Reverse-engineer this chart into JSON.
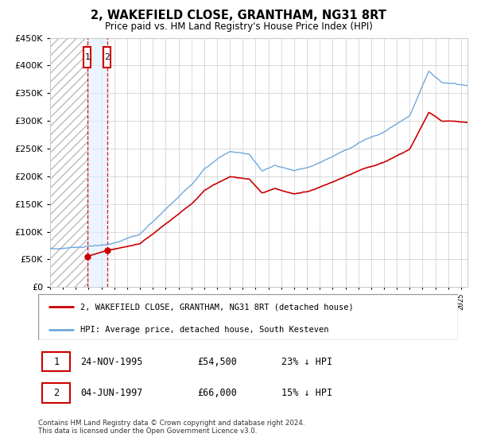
{
  "title": "2, WAKEFIELD CLOSE, GRANTHAM, NG31 8RT",
  "subtitle": "Price paid vs. HM Land Registry's House Price Index (HPI)",
  "legend_line1": "2, WAKEFIELD CLOSE, GRANTHAM, NG31 8RT (detached house)",
  "legend_line2": "HPI: Average price, detached house, South Kesteven",
  "transaction1_date": "24-NOV-1995",
  "transaction1_price": "£54,500",
  "transaction1_hpi": "23% ↓ HPI",
  "transaction1_price_val": 54500,
  "transaction2_date": "04-JUN-1997",
  "transaction2_price": "£66,000",
  "transaction2_hpi": "15% ↓ HPI",
  "transaction2_price_val": 66000,
  "footnote1": "Contains HM Land Registry data © Crown copyright and database right 2024.",
  "footnote2": "This data is licensed under the Open Government Licence v3.0.",
  "red_color": "#cc0000",
  "blue_color": "#6fa8dc",
  "grid_color": "#cccccc",
  "transaction1_x": 1995.9,
  "transaction2_x": 1997.45,
  "ylim": [
    0,
    450000
  ],
  "xlim_start": 1993.0,
  "xlim_end": 2025.5,
  "hpi_anchors": [
    [
      1993.0,
      68000
    ],
    [
      1996.0,
      74000
    ],
    [
      1997.45,
      76000
    ],
    [
      2000.0,
      95000
    ],
    [
      2004.0,
      185000
    ],
    [
      2005.0,
      215000
    ],
    [
      2007.0,
      245000
    ],
    [
      2008.5,
      240000
    ],
    [
      2009.5,
      210000
    ],
    [
      2010.5,
      220000
    ],
    [
      2012.0,
      210000
    ],
    [
      2013.0,
      215000
    ],
    [
      2015.0,
      235000
    ],
    [
      2017.0,
      260000
    ],
    [
      2019.0,
      280000
    ],
    [
      2021.0,
      310000
    ],
    [
      2022.5,
      390000
    ],
    [
      2023.5,
      370000
    ],
    [
      2025.5,
      365000
    ]
  ],
  "prop_anchors": [
    [
      1995.9,
      54500
    ],
    [
      1997.45,
      66000
    ],
    [
      2000.0,
      78000
    ],
    [
      2004.0,
      150000
    ],
    [
      2005.0,
      175000
    ],
    [
      2007.0,
      200000
    ],
    [
      2008.5,
      195000
    ],
    [
      2009.5,
      170000
    ],
    [
      2010.5,
      178000
    ],
    [
      2012.0,
      168000
    ],
    [
      2013.0,
      172000
    ],
    [
      2015.0,
      190000
    ],
    [
      2017.0,
      210000
    ],
    [
      2019.0,
      225000
    ],
    [
      2021.0,
      248000
    ],
    [
      2022.5,
      315000
    ],
    [
      2023.5,
      300000
    ],
    [
      2025.5,
      298000
    ]
  ]
}
